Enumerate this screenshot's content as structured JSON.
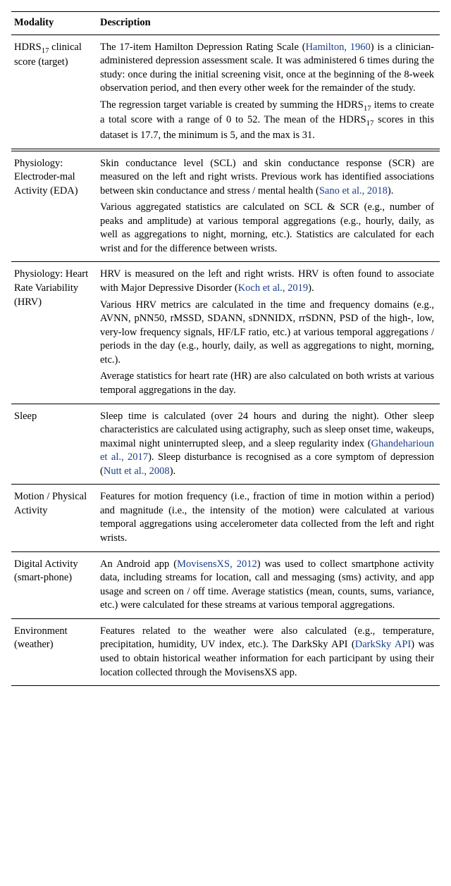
{
  "table": {
    "columns": [
      "Modality",
      "Description"
    ],
    "link_color": "#1a3e8b",
    "rows": [
      {
        "modality_html": "HDRS<sub>17</sub> clinical score (target)",
        "description_html": "<p>The 17-item Hamilton Depression Rating Scale (<span class='cite'>Hamilton, 1960</span>) is a clinician-administered depression assessment scale. It was administered 6 times during the study: once during the initial screening visit, once at the beginning of the 8-week observation period, and then every other week for the remainder of the study.</p><p>The regression target variable is created by summing the HDRS<sub>17</sub> items to create a total score with a range of 0 to 52. The mean of the HDRS<sub>17</sub> scores in this dataset is 17.7, the minimum is 5, and the max is 31.</p>",
        "double_rule_after": true
      },
      {
        "modality_html": "Physiology: Electroder-mal Activity (EDA)",
        "description_html": "<p>Skin conductance level (SCL) and skin conductance response (SCR) are measured on the left and right wrists. Previous work has identified associations between skin conductance and stress / mental health (<span class='cite'>Sano et al., 2018</span>).</p><p>Various aggregated statistics are calculated on SCL &amp; SCR (e.g., number of peaks and amplitude) at various temporal aggregations (e.g., hourly, daily, as well as aggregations to night, morning, etc.). Statistics are calculated for each wrist and for the difference between wrists.</p>"
      },
      {
        "modality_html": "Physiology: Heart Rate Variability (HRV)",
        "description_html": "<p>HRV is measured on the left and right wrists. HRV is often found to associate with Major Depressive Disorder (<span class='cite'>Koch et al., 2019</span>).</p><p>Various HRV metrics are calculated in the time and frequency domains (e.g., AVNN, pNN50, rMSSD, SDANN, sDNNIDX, rrSDNN, PSD of the high-, low, very-low frequency signals, HF/LF ratio, etc.) at various temporal aggregations / periods in the day (e.g., hourly, daily, as well as aggregations to night, morning, etc.).</p><p>Average statistics for heart rate (HR) are also calculated on both wrists at various temporal aggregations in the day.</p>"
      },
      {
        "modality_html": "Sleep",
        "description_html": "<p>Sleep time is calculated (over 24 hours and during the night). Other sleep characteristics are calculated using actigraphy, such as sleep onset time, wakeups, maximal night uninterrupted sleep, and a sleep regularity index (<span class='cite'>Ghandeharioun et al., 2017</span>). Sleep disturbance is recognised as a core symptom of depression (<span class='cite'>Nutt et al., 2008</span>).</p>"
      },
      {
        "modality_html": "Motion / Physical Activity",
        "description_html": "<p>Features for motion frequency (i.e., fraction of time in motion within a period) and magnitude (i.e., the intensity of the motion) were calculated at various temporal aggregations using accelerometer data collected from the left and right wrists.</p>"
      },
      {
        "modality_html": "Digital Activity (smart-phone)",
        "description_html": "<p>An Android app (<span class='cite'>MovisensXS, 2012</span>) was used to collect smartphone activity data, including streams for location, call and messaging (sms) activity, and app usage and screen on / off time. Average statistics (mean, counts, sums, variance, etc.) were calculated for these streams at various temporal aggregations.</p>"
      },
      {
        "modality_html": "Environment (weather)",
        "description_html": "<p>Features related to the weather were also calculated (e.g., temperature, precipitation, humidity, UV index, etc.). The DarkSky API (<span class='cite'>DarkSky API</span>) was used to obtain historical weather information for each participant by using their location collected through the MovisensXS app.</p>",
        "last": true
      }
    ]
  }
}
